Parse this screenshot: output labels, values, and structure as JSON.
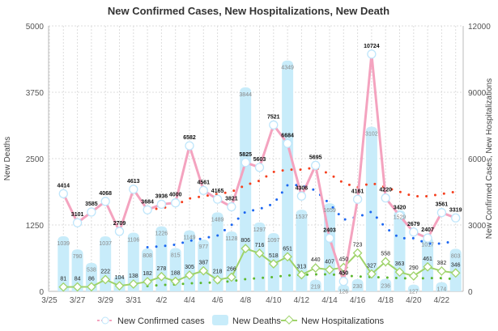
{
  "chart_data": {
    "type": "bar",
    "title": "New Confirmed Cases, New Hospitalizations, New Death",
    "ylabel_left": "New Deaths",
    "ylabel_right": "New Confirmed Cases, New Hospitalizations",
    "ylim_left": [
      0,
      5000
    ],
    "ylim_right": [
      0,
      12000
    ],
    "yticks_left": [
      "0",
      "1250",
      "2500",
      "3750",
      "5000"
    ],
    "yticks_right": [
      "0",
      "3000",
      "6000",
      "9000",
      "12000"
    ],
    "x": [
      "3/26",
      "3/27",
      "3/28",
      "3/29",
      "3/30",
      "3/31",
      "4/1",
      "4/2",
      "4/3",
      "4/4",
      "4/5",
      "4/6",
      "4/7",
      "4/8",
      "4/9",
      "4/10",
      "4/11",
      "4/12",
      "4/13",
      "4/14",
      "4/15",
      "4/16",
      "4/17",
      "4/18",
      "4/19",
      "4/20",
      "4/21",
      "4/22",
      "4/23"
    ],
    "xtick_labels": [
      "3/25",
      "3/27",
      "3/29",
      "3/31",
      "4/2",
      "4/4",
      "4/6",
      "4/8",
      "4/10",
      "4/12",
      "4/14",
      "4/16",
      "4/18",
      "4/20",
      "4/22"
    ],
    "grid": true,
    "legend_placement": "bottom",
    "series": [
      {
        "name": "New Confirmed cases",
        "type": "line",
        "axis": "right",
        "color": "#f4a3bf",
        "values": [
          4414,
          3101,
          3585,
          4068,
          2709,
          4613,
          3684,
          3936,
          4000,
          6582,
          4561,
          4165,
          3821,
          5825,
          5603,
          7521,
          6684,
          4306,
          5695,
          2403,
          450,
          4161,
          10724,
          4220,
          3420,
          2679,
          2407,
          3561,
          3319
        ]
      },
      {
        "name": "New Deaths",
        "type": "bar",
        "axis": "left",
        "color": "#c8ecfa",
        "values": [
          1039,
          790,
          538,
          1037,
          300,
          1106,
          808,
          1226,
          815,
          1149,
          977,
          1489,
          1128,
          3844,
          1297,
          1097,
          4349,
          1537,
          219,
          1659,
          126,
          230,
          3102,
          236,
          1529,
          127,
          1017,
          174,
          803
        ],
        "labels": [
          "1039",
          "790",
          "538",
          "1037",
          "",
          "1106",
          "808",
          "1226",
          "815",
          "1149",
          "977",
          "1489",
          "1128",
          "3844",
          "1297",
          "1097",
          "4349",
          "1537",
          "219",
          "1659",
          "126",
          "230",
          "3102",
          "236",
          "1529",
          "127",
          "1017",
          "174",
          "803"
        ]
      },
      {
        "name": "New Hospitalizations",
        "type": "line",
        "axis": "left",
        "color": "#9fd36a",
        "values": [
          81,
          84,
          86,
          222,
          104,
          138,
          182,
          278,
          188,
          305,
          387,
          218,
          266,
          806,
          716,
          518,
          651,
          313,
          440,
          407,
          450,
          723,
          327,
          558,
          363,
          290,
          461,
          382,
          346
        ]
      }
    ],
    "trend_series": [
      {
        "axis": "right",
        "color": "#f5401f",
        "start": "4/1",
        "values": [
          3700,
          3750,
          3900,
          4200,
          4300,
          4400,
          4500,
          4800,
          5000,
          5400,
          5500,
          5500,
          5600,
          5300,
          4900,
          4700,
          4900,
          4700,
          4500,
          4300,
          4300,
          4400,
          4500
        ]
      },
      {
        "axis": "left",
        "color": "#1c66f0",
        "start": "4/1",
        "values": [
          830,
          850,
          880,
          950,
          1000,
          1050,
          1250,
          1500,
          1550,
          1650,
          2000,
          2000,
          1900,
          1650,
          1350,
          1400,
          1500,
          1200,
          1000,
          1000,
          900,
          900,
          950
        ]
      },
      {
        "axis": "left",
        "color": "#5cb82e",
        "start": "4/1",
        "values": [
          100,
          120,
          130,
          150,
          160,
          170,
          190,
          230,
          250,
          270,
          300,
          310,
          320,
          320,
          300,
          280,
          270,
          260,
          250,
          240,
          250,
          250,
          230
        ]
      }
    ]
  }
}
